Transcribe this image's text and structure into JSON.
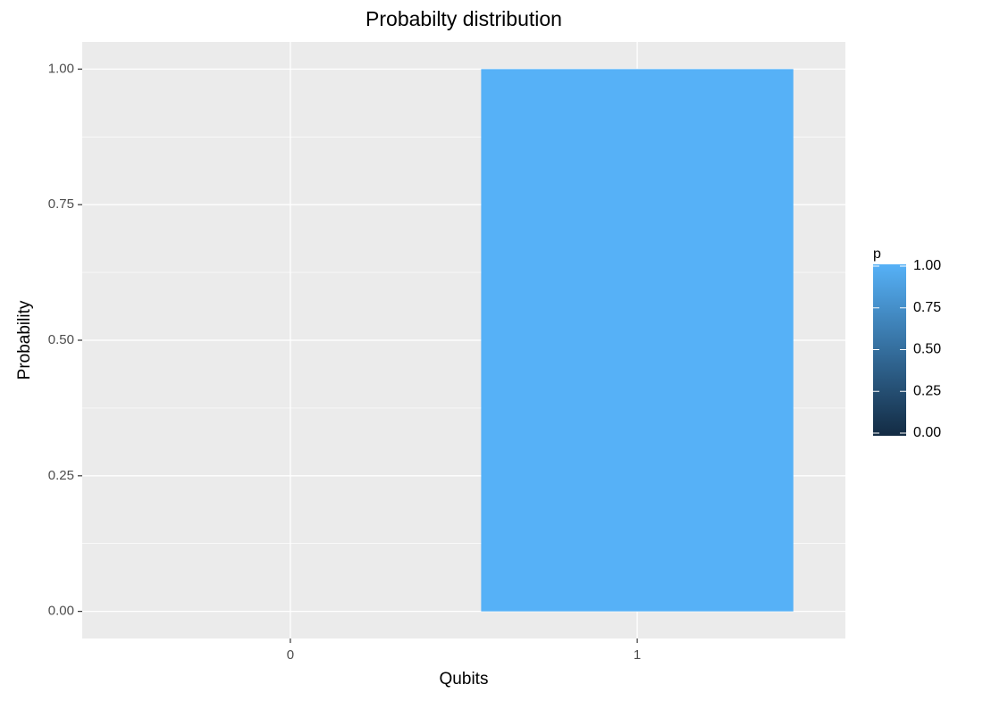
{
  "chart_data": {
    "type": "bar",
    "title": "Probabilty distribution",
    "x_label": "Qubits",
    "y_label": "Probability",
    "categories": [
      "0",
      "1"
    ],
    "values": [
      0,
      1
    ],
    "ylim": [
      -0.05,
      1.05
    ],
    "yticks": [
      {
        "value": 0,
        "label": "0.00"
      },
      {
        "value": 0.25,
        "label": "0.25"
      },
      {
        "value": 0.5,
        "label": "0.50"
      },
      {
        "value": 0.75,
        "label": "0.75"
      },
      {
        "value": 1,
        "label": "1.00"
      }
    ],
    "grid": true,
    "minor_grid": true,
    "legend": {
      "title": "p",
      "position": "right",
      "colors": [
        "#132B43",
        "#56B1F7"
      ],
      "limits": [
        0,
        1
      ],
      "ticks": [
        {
          "value": 0,
          "label": "0.00"
        },
        {
          "value": 0.25,
          "label": "0.25"
        },
        {
          "value": 0.5,
          "label": "0.50"
        },
        {
          "value": 0.75,
          "label": "0.75"
        },
        {
          "value": 1,
          "label": "1.00"
        }
      ]
    }
  }
}
